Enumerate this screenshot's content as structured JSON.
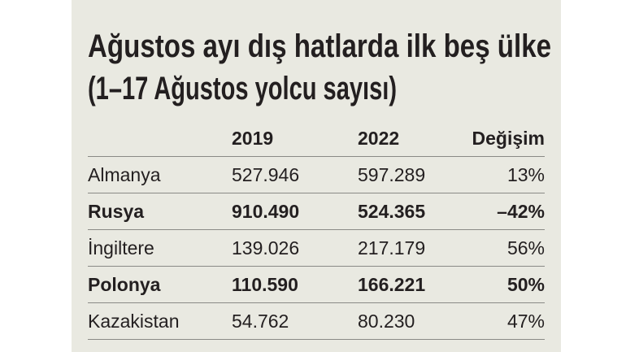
{
  "header": {
    "title": "Ağustos ayı dış hatlarda ilk beş ülke",
    "subtitle": "(1–17 Ağustos yolcu sayısı)"
  },
  "table": {
    "columns": [
      "",
      "2019",
      "2022",
      "Değişim"
    ],
    "rows": [
      [
        "Almanya",
        "527.946",
        "597.289",
        "13%"
      ],
      [
        "Rusya",
        "910.490",
        "524.365",
        "–42%"
      ],
      [
        "İngiltere",
        "139.026",
        "217.179",
        "56%"
      ],
      [
        "Polonya",
        "110.590",
        "166.221",
        "50%"
      ],
      [
        "Kazakistan",
        "54.762",
        "80.230",
        "47%"
      ]
    ]
  }
}
